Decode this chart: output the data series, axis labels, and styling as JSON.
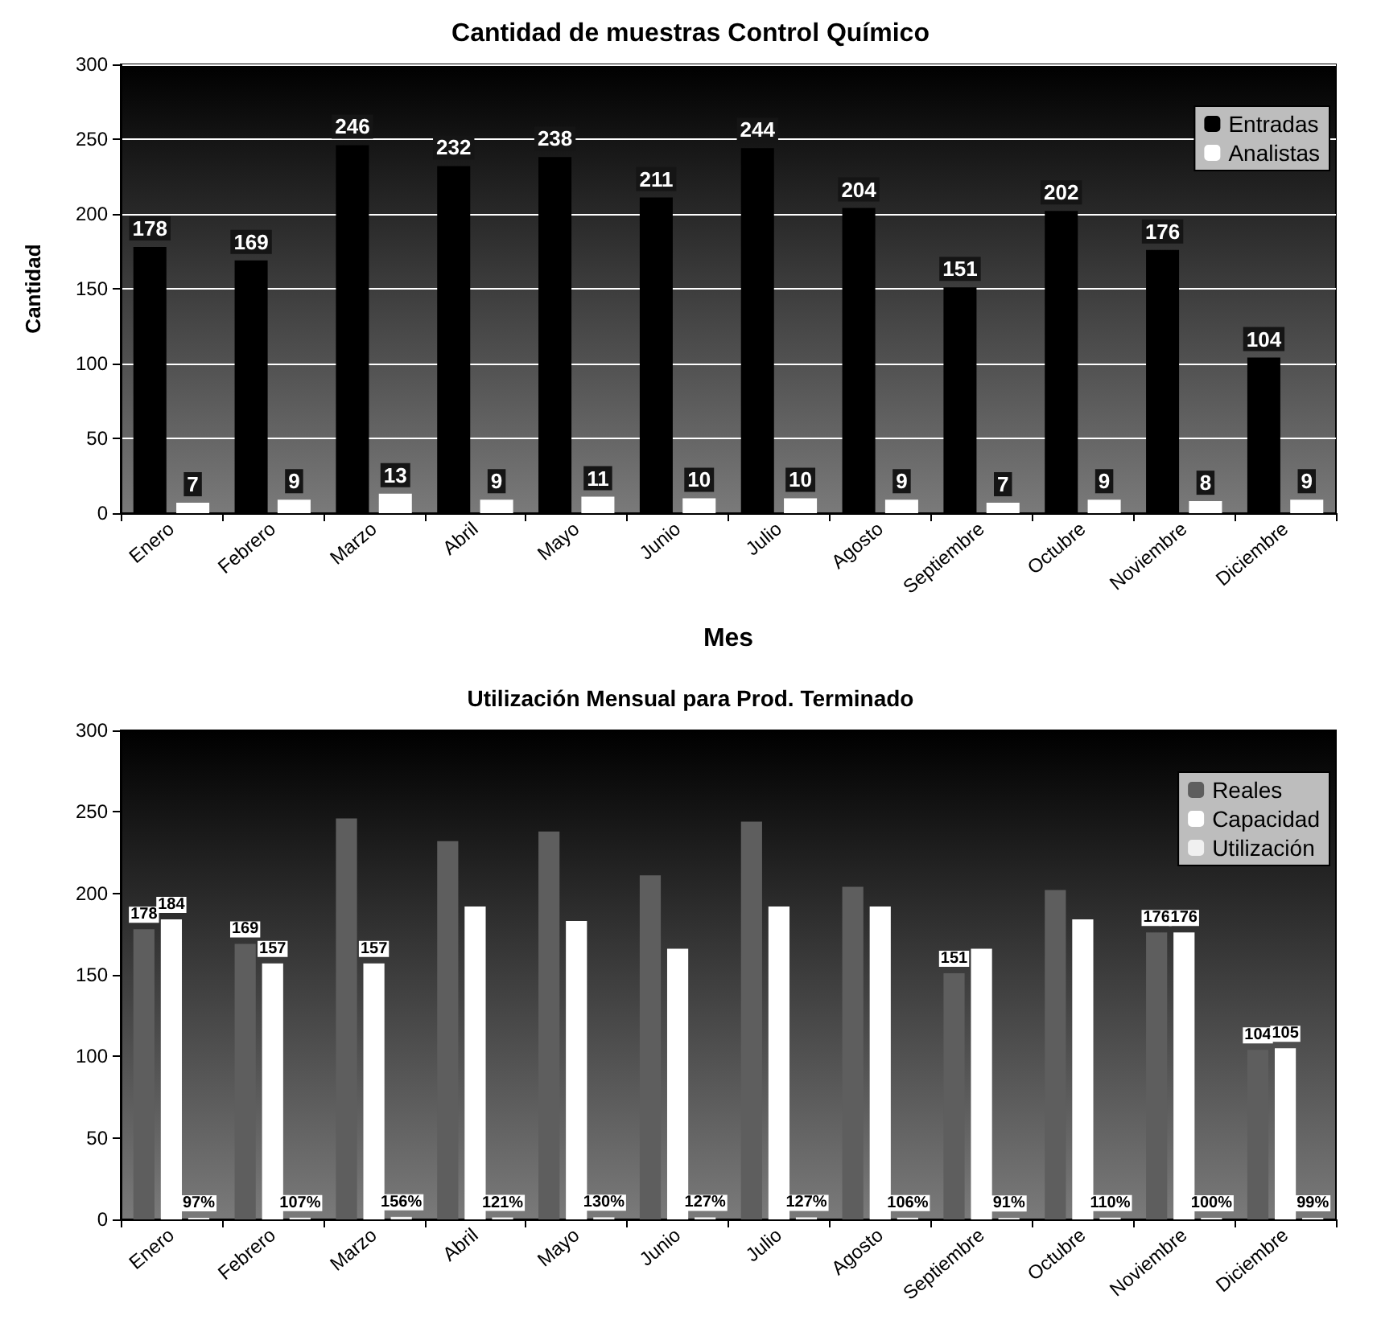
{
  "chart_data": [
    {
      "type": "bar",
      "title": "Cantidad de muestras Control Químico",
      "xlabel": "Mes",
      "ylabel": "Cantidad",
      "categories": [
        "Enero",
        "Febrero",
        "Marzo",
        "Abril",
        "Mayo",
        "Junio",
        "Julio",
        "Agosto",
        "Septiembre",
        "Octubre",
        "Noviembre",
        "Diciembre"
      ],
      "series": [
        {
          "name": "Entradas",
          "color": "#000000",
          "values": [
            178,
            169,
            246,
            232,
            238,
            211,
            244,
            204,
            151,
            202,
            176,
            104
          ]
        },
        {
          "name": "Analistas",
          "color": "#ffffff",
          "values": [
            7,
            9,
            13,
            9,
            11,
            10,
            10,
            9,
            7,
            9,
            8,
            9
          ]
        }
      ],
      "ylim": [
        0,
        300
      ],
      "yticks": [
        0,
        50,
        100,
        150,
        200,
        250,
        300
      ],
      "grid": "y",
      "legend": "top right",
      "data_labels": true
    },
    {
      "type": "bar",
      "title": "Utilización Mensual para Prod. Terminado",
      "categories": [
        "Enero",
        "Febrero",
        "Marzo",
        "Abril",
        "Mayo",
        "Junio",
        "Julio",
        "Agosto",
        "Septiembre",
        "Octubre",
        "Noviembre",
        "Diciembre"
      ],
      "series": [
        {
          "name": "Reales",
          "color": "#5e5e5e",
          "values": [
            178,
            169,
            246,
            232,
            238,
            211,
            244,
            204,
            151,
            202,
            176,
            104
          ],
          "value_labels": [
            "178",
            "169",
            null,
            null,
            null,
            null,
            null,
            null,
            "151",
            null,
            "176",
            "104"
          ]
        },
        {
          "name": "Capacidad",
          "color": "#ffffff",
          "values": [
            184,
            157,
            157,
            192,
            183,
            166,
            192,
            192,
            166,
            184,
            176,
            105
          ],
          "value_labels": [
            "184",
            "157",
            "157",
            null,
            null,
            null,
            null,
            null,
            null,
            null,
            "176",
            "105"
          ]
        },
        {
          "name": "Utilización",
          "color": "#f0f0f0",
          "values": [
            0.97,
            1.07,
            1.56,
            1.21,
            1.3,
            1.27,
            1.27,
            1.06,
            0.91,
            1.1,
            1.0,
            0.99
          ],
          "value_labels": [
            "97%",
            "107%",
            "156%",
            "121%",
            "130%",
            "127%",
            "127%",
            "106%",
            "91%",
            "110%",
            "100%",
            "99%"
          ]
        }
      ],
      "ylim": [
        0,
        300
      ],
      "yticks": [
        0,
        50,
        100,
        150,
        200,
        250,
        300
      ],
      "grid": false,
      "legend": "top right"
    }
  ]
}
